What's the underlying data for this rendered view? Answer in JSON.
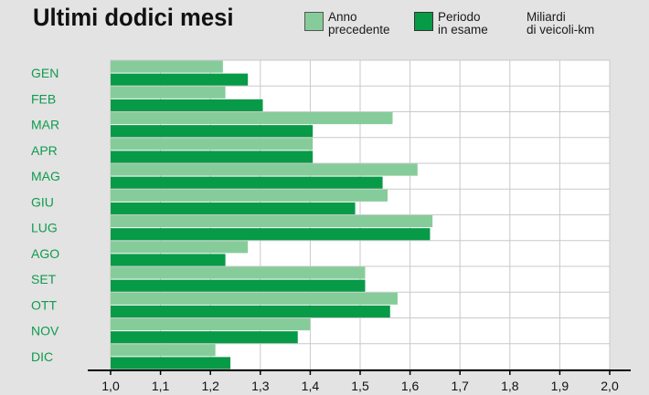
{
  "chart_data": {
    "type": "bar",
    "orientation": "horizontal",
    "title": "Ultimi dodici mesi",
    "unit_label": "Miliardi\ndi veicoli-km",
    "categories": [
      "GEN",
      "FEB",
      "MAR",
      "APR",
      "MAG",
      "GIU",
      "LUG",
      "AGO",
      "SET",
      "OTT",
      "NOV",
      "DIC"
    ],
    "series": [
      {
        "name": "Anno\nprecedente",
        "color": "#86cc9a",
        "values": [
          1.225,
          1.23,
          1.565,
          1.405,
          1.615,
          1.555,
          1.645,
          1.275,
          1.51,
          1.575,
          1.4,
          1.21
        ]
      },
      {
        "name": "Periodo\nin esame",
        "color": "#079a47",
        "values": [
          1.275,
          1.305,
          1.405,
          1.405,
          1.545,
          1.49,
          1.64,
          1.23,
          1.51,
          1.56,
          1.375,
          1.24
        ]
      }
    ],
    "xlim": [
      1.0,
      2.0
    ],
    "x_ticks": [
      "1,0",
      "1,1",
      "1,2",
      "1,3",
      "1,4",
      "1,5",
      "1,6",
      "1,7",
      "1,8",
      "1,9",
      "2,0"
    ],
    "grid": true
  }
}
